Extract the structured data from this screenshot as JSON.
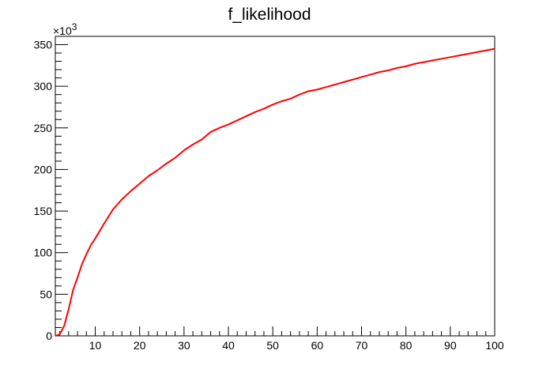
{
  "chart_data": {
    "type": "line",
    "title": "f_likelihood",
    "xlabel": "",
    "ylabel": "",
    "y_multiplier_label": "×10",
    "y_multiplier_exponent": "3",
    "xlim": [
      1,
      100
    ],
    "ylim": [
      0,
      360
    ],
    "x_ticks": [
      10,
      20,
      30,
      40,
      50,
      60,
      70,
      80,
      90,
      100
    ],
    "y_ticks": [
      0,
      50,
      100,
      150,
      200,
      250,
      300,
      350
    ],
    "grid": false,
    "line_color": "#ff0000",
    "series": [
      {
        "x": [
          1,
          2,
          3,
          4,
          5,
          6,
          7,
          8,
          9,
          10,
          12,
          14,
          16,
          18,
          20,
          22,
          24,
          26,
          28,
          30,
          32,
          34,
          36,
          38,
          40,
          42,
          44,
          46,
          48,
          50,
          52,
          54,
          56,
          58,
          60,
          62,
          64,
          66,
          68,
          70,
          72,
          74,
          76,
          78,
          80,
          82,
          84,
          86,
          88,
          90,
          92,
          94,
          96,
          98,
          100
        ],
        "y": [
          0,
          2,
          12,
          32,
          55,
          70,
          86,
          98,
          109,
          117,
          135,
          152,
          164,
          174,
          183,
          192,
          199,
          207,
          214,
          223,
          230,
          236,
          245,
          250,
          254,
          259,
          264,
          269,
          273,
          278,
          282,
          285,
          290,
          294,
          296,
          299,
          302,
          305,
          308,
          311,
          314,
          317,
          319,
          322,
          324,
          327,
          329,
          331,
          333,
          335,
          337,
          339,
          341,
          343,
          345
        ]
      }
    ]
  }
}
